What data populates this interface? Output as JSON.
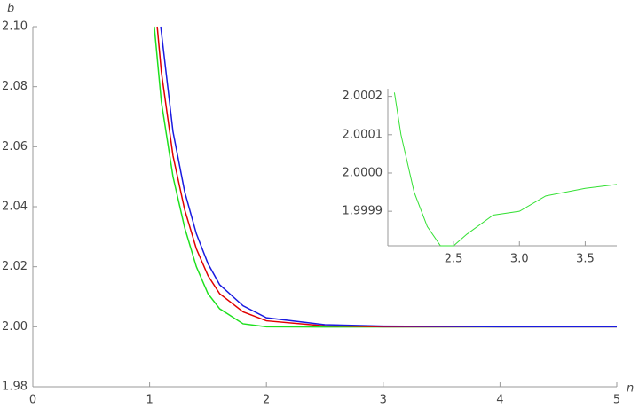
{
  "chart_data": [
    {
      "type": "line",
      "x_label": "n",
      "y_label": "b",
      "xlim": [
        0,
        5
      ],
      "ylim": [
        1.98,
        2.1
      ],
      "xticks": [
        0,
        1,
        2,
        3,
        4,
        5
      ],
      "yticks": [
        1.98,
        {
          "value": 2.0,
          "label": "2.00"
        },
        2.02,
        2.04,
        2.06,
        2.08,
        {
          "value": 2.1,
          "label": "2.10"
        }
      ],
      "series": [
        {
          "color": "#1ee01e",
          "x": [
            1.04,
            1.1,
            1.2,
            1.3,
            1.4,
            1.5,
            1.6,
            1.8,
            2.0,
            2.5,
            5
          ],
          "values": [
            2.1,
            2.075,
            2.05,
            2.033,
            2.02,
            2.011,
            2.006,
            2.001,
            2.0,
            1.9999,
            2.0
          ]
        },
        {
          "color": "#e00000",
          "x": [
            1.065,
            1.1,
            1.2,
            1.3,
            1.4,
            1.5,
            1.6,
            1.8,
            2.0,
            2.5,
            3,
            5
          ],
          "values": [
            2.1,
            2.085,
            2.057,
            2.039,
            2.026,
            2.017,
            2.011,
            2.005,
            2.002,
            2.0003,
            2.0,
            2.0
          ]
        },
        {
          "color": "#1a1ae0",
          "x": [
            1.095,
            1.2,
            1.3,
            1.4,
            1.5,
            1.6,
            1.8,
            2.0,
            2.5,
            3,
            4,
            5
          ],
          "values": [
            2.1,
            2.065,
            2.045,
            2.031,
            2.021,
            2.014,
            2.007,
            2.003,
            2.0007,
            2.0002,
            2.0,
            2.0
          ]
        }
      ]
    },
    {
      "type": "line",
      "xlim": [
        2.0,
        3.74
      ],
      "ylim": [
        1.99981,
        2.00022
      ],
      "xticks": [
        2.5,
        {
          "value": 3.0,
          "label": "3.0"
        },
        3.5
      ],
      "yticks": [
        1.9999,
        {
          "value": 2.0,
          "label": "2.0000"
        },
        2.0001,
        2.0002
      ],
      "series": [
        {
          "color": "#33e033",
          "x": [
            2.05,
            2.1,
            2.2,
            2.3,
            2.4,
            2.5,
            2.6,
            2.8,
            3.0,
            3.2,
            3.5,
            3.74
          ],
          "values": [
            2.00021,
            2.0001,
            1.99995,
            1.99986,
            1.99981,
            1.99981,
            1.99984,
            1.99989,
            1.9999,
            1.99994,
            1.99996,
            1.99997
          ]
        }
      ]
    }
  ]
}
